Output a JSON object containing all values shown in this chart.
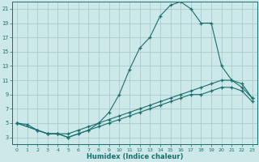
{
  "xlabel": "Humidex (Indice chaleur)",
  "bg_color": "#cce8e8",
  "grid_color": "#aacccc",
  "line_color": "#1a6e6e",
  "xlim": [
    -0.5,
    23.5
  ],
  "ylim": [
    2,
    22
  ],
  "xticks": [
    0,
    1,
    2,
    3,
    4,
    5,
    6,
    7,
    8,
    9,
    10,
    11,
    12,
    13,
    14,
    15,
    16,
    17,
    18,
    19,
    20,
    21,
    22,
    23
  ],
  "yticks": [
    3,
    5,
    7,
    9,
    11,
    13,
    15,
    17,
    19,
    21
  ],
  "line1_x": [
    0,
    1,
    2,
    3,
    4,
    5,
    6,
    7,
    8,
    9,
    10,
    11,
    12,
    13,
    14,
    15,
    16,
    17,
    18,
    19,
    20,
    21,
    22,
    23
  ],
  "line1_y": [
    5,
    4.8,
    4,
    3.5,
    3.5,
    3,
    3.5,
    4,
    5,
    6.5,
    9,
    12.5,
    15.5,
    17,
    20,
    21.5,
    22,
    21,
    19,
    19,
    13,
    11,
    10.5,
    8.5
  ],
  "line2_x": [
    0,
    2,
    3,
    4,
    5,
    6,
    7,
    8,
    9,
    10,
    11,
    12,
    13,
    14,
    15,
    16,
    17,
    18,
    19,
    20,
    21,
    22,
    23
  ],
  "line2_y": [
    5,
    4,
    3.5,
    3.5,
    3.5,
    4,
    4.5,
    5,
    5.5,
    6,
    6.5,
    7,
    7.5,
    8,
    8.5,
    9,
    9.5,
    10,
    10.5,
    11,
    11,
    10,
    8.5
  ],
  "line3_x": [
    0,
    2,
    3,
    4,
    5,
    6,
    7,
    8,
    9,
    10,
    11,
    12,
    13,
    14,
    15,
    16,
    17,
    18,
    19,
    20,
    21,
    22,
    23
  ],
  "line3_y": [
    5,
    4,
    3.5,
    3.5,
    3,
    3.5,
    4,
    4.5,
    5,
    5.5,
    6,
    6.5,
    7,
    7.5,
    8,
    8.5,
    9,
    9,
    9.5,
    10,
    10,
    9.5,
    8
  ]
}
